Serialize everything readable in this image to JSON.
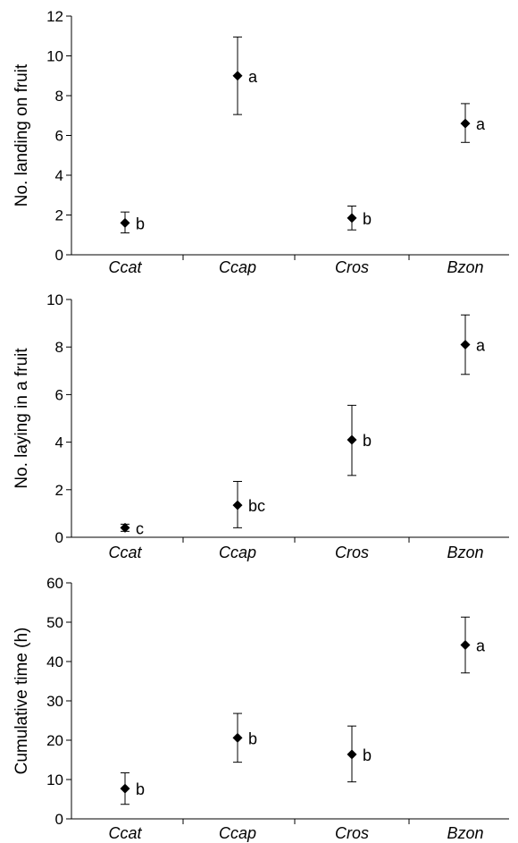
{
  "chart_data": [
    {
      "type": "scatter",
      "categories": [
        "Ccat",
        "Ccap",
        "Cros",
        "Bzon"
      ],
      "ylabel": "No. landing on fruit",
      "ylim": [
        0,
        12
      ],
      "yticks": [
        0,
        2,
        4,
        6,
        8,
        10,
        12
      ],
      "series": [
        {
          "values": [
            1.6,
            9.0,
            1.85,
            6.6
          ],
          "error_low": [
            1.1,
            7.05,
            1.25,
            5.65
          ],
          "error_high": [
            2.15,
            10.95,
            2.45,
            7.6
          ],
          "labels": [
            "b",
            "a",
            "b",
            "a"
          ]
        }
      ]
    },
    {
      "type": "scatter",
      "categories": [
        "Ccat",
        "Ccap",
        "Cros",
        "Bzon"
      ],
      "ylabel": "No. laying in a fruit",
      "ylim": [
        0,
        10
      ],
      "yticks": [
        0,
        2,
        4,
        6,
        8,
        10
      ],
      "series": [
        {
          "values": [
            0.4,
            1.35,
            4.1,
            8.1
          ],
          "error_low": [
            0.25,
            0.4,
            2.6,
            6.85
          ],
          "error_high": [
            0.55,
            2.35,
            5.55,
            9.35
          ],
          "labels": [
            "c",
            "bc",
            "b",
            "a"
          ]
        }
      ]
    },
    {
      "type": "scatter",
      "categories": [
        "Ccat",
        "Ccap",
        "Cros",
        "Bzon"
      ],
      "ylabel": "Cumulative time (h)",
      "ylim": [
        0,
        60
      ],
      "yticks": [
        0,
        10,
        20,
        30,
        40,
        50,
        60
      ],
      "series": [
        {
          "values": [
            7.7,
            20.6,
            16.4,
            44.2
          ],
          "error_low": [
            3.7,
            14.4,
            9.4,
            37.1
          ],
          "error_high": [
            11.7,
            26.8,
            23.6,
            51.3
          ],
          "labels": [
            "b",
            "b",
            "b",
            "a"
          ]
        }
      ]
    }
  ]
}
